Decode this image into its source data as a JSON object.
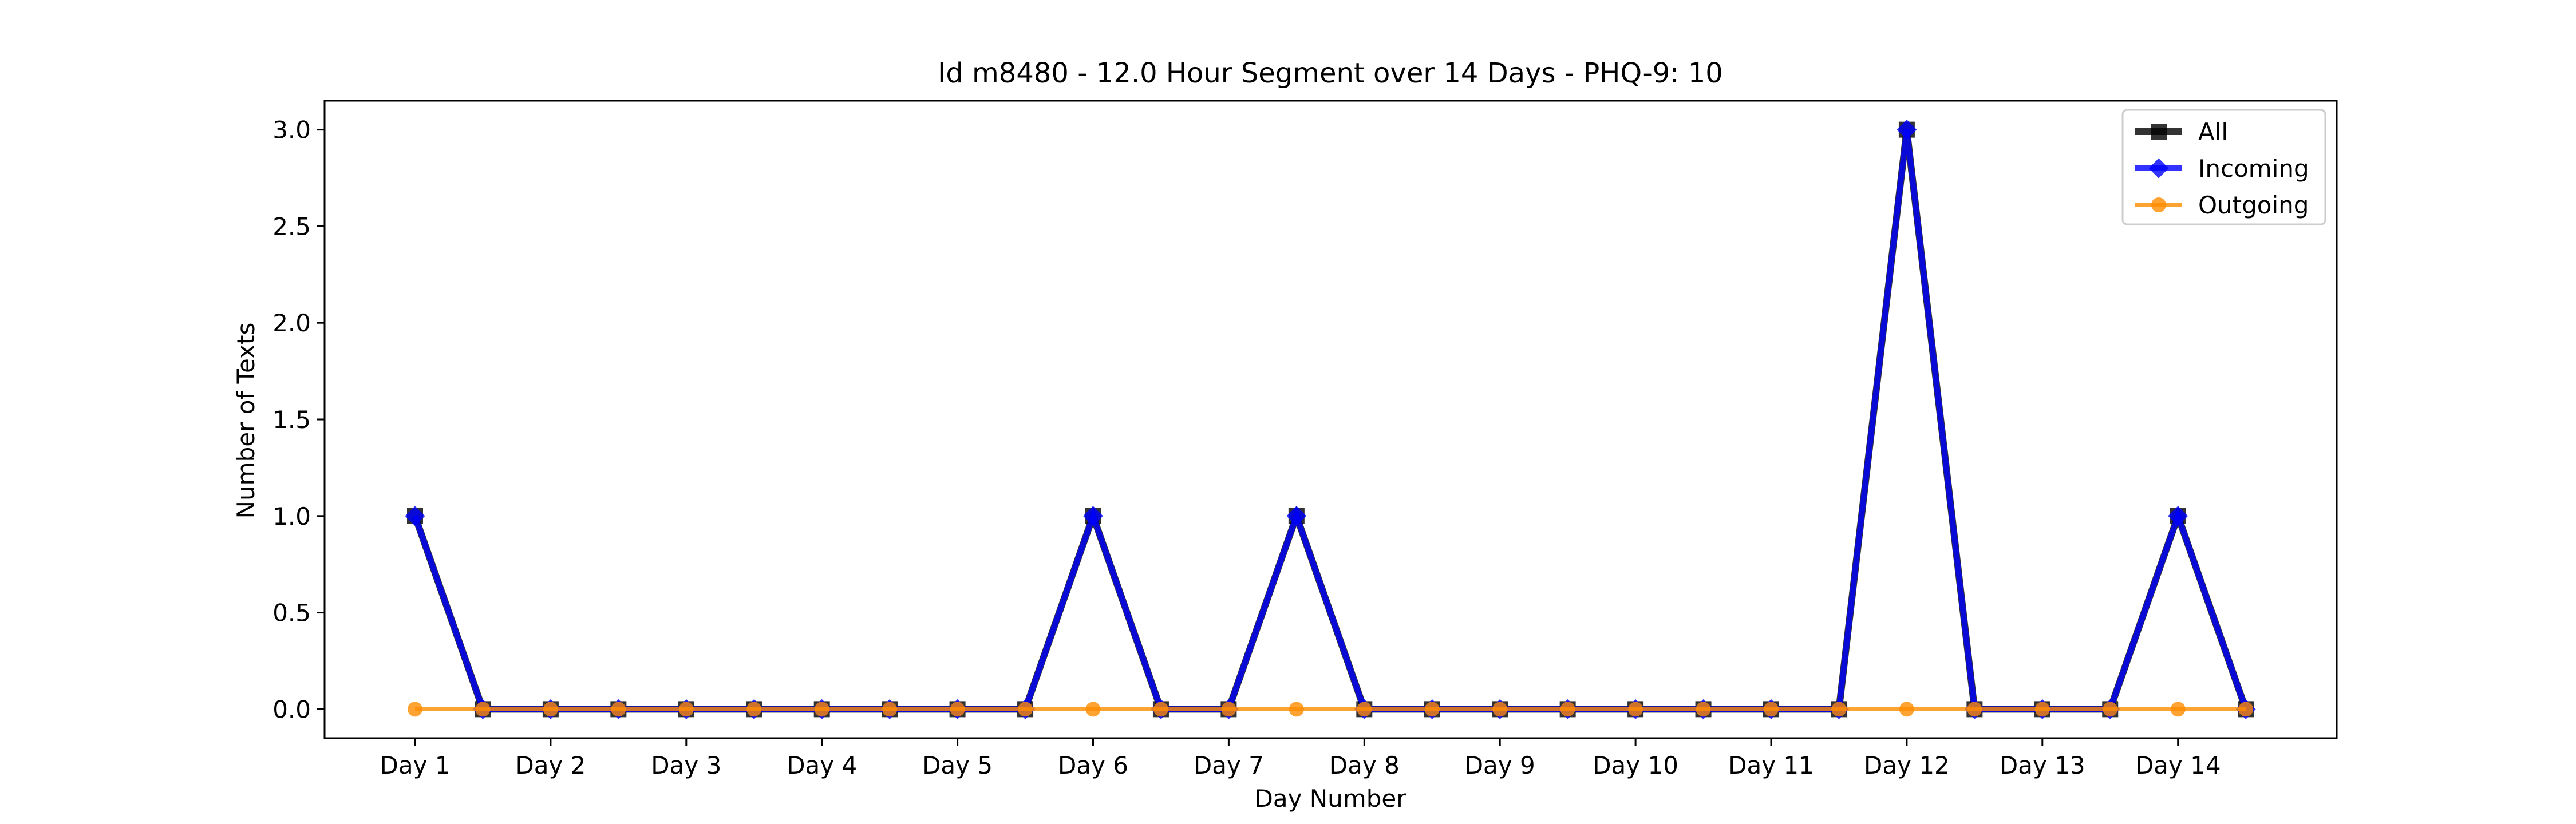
{
  "chart_data": {
    "type": "line",
    "title": "Id m8480 - 12.0 Hour Segment over 14 Days - PHQ-9: 10",
    "xlabel": "Day Number",
    "ylabel": "Number of Texts",
    "x_tick_labels": [
      "Day 1",
      "Day 2",
      "Day 3",
      "Day 4",
      "Day 5",
      "Day 6",
      "Day 7",
      "Day 8",
      "Day 9",
      "Day 10",
      "Day 11",
      "Day 12",
      "Day 13",
      "Day 14"
    ],
    "y_ticks": [
      "0.0",
      "0.5",
      "1.0",
      "1.5",
      "2.0",
      "2.5",
      "3.0"
    ],
    "ylim": [
      -0.15,
      3.15
    ],
    "grid": false,
    "legend_position": "top-right",
    "series": [
      {
        "name": "All",
        "color": "#000000",
        "marker": "square",
        "values": [
          1,
          0,
          0,
          0,
          0,
          0,
          0,
          0,
          0,
          0,
          1,
          0,
          0,
          1,
          0,
          0,
          0,
          0,
          0,
          0,
          0,
          0,
          3,
          0,
          0,
          0,
          1,
          0
        ]
      },
      {
        "name": "Incoming",
        "color": "#0000ff",
        "marker": "diamond",
        "values": [
          1,
          0,
          0,
          0,
          0,
          0,
          0,
          0,
          0,
          0,
          1,
          0,
          0,
          1,
          0,
          0,
          0,
          0,
          0,
          0,
          0,
          0,
          3,
          0,
          0,
          0,
          1,
          0
        ]
      },
      {
        "name": "Outgoing",
        "color": "#ff8c00",
        "marker": "circle",
        "values": [
          0,
          0,
          0,
          0,
          0,
          0,
          0,
          0,
          0,
          0,
          0,
          0,
          0,
          0,
          0,
          0,
          0,
          0,
          0,
          0,
          0,
          0,
          0,
          0,
          0,
          0,
          0,
          0
        ]
      }
    ]
  }
}
